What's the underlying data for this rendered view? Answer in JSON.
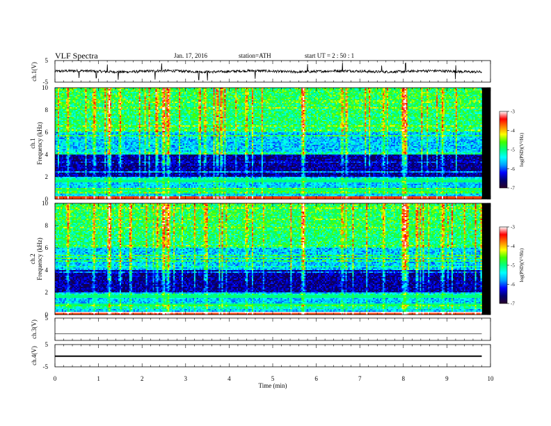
{
  "header": {
    "title": "VLF  Spectra",
    "date": "Jan. 17, 2016",
    "station": "station=ATH",
    "start": "start  UT  =   2  : 50 : 1"
  },
  "chart_data": [
    {
      "type": "line",
      "id": "ch1-waveform",
      "ylabel": "ch.1(V)",
      "yticks": [
        "5",
        "-5"
      ],
      "ylim": [
        -5,
        5
      ],
      "x_unit": "min",
      "xlim": [
        0,
        10
      ],
      "data_extent_min": 9.8,
      "baseline_v": 0.0,
      "noise_amplitude_v": 1.2,
      "spike_times_min": [
        0.55,
        0.95,
        1.2,
        1.45,
        2.3,
        2.45,
        3.3,
        3.5,
        4.6,
        5.8,
        6.6,
        7.5,
        8.05,
        9.2
      ]
    },
    {
      "type": "heatmap",
      "id": "ch1-spectrogram",
      "ylabel": "ch.1\nFrequency  (kHz)",
      "yticks": [
        "0",
        "2",
        "4",
        "6",
        "8",
        "10"
      ],
      "ylim": [
        0,
        10
      ],
      "xlim": [
        0,
        10
      ],
      "data_extent_min": 9.8,
      "colorbar": {
        "label": "log(PSD)(V²/Hz)",
        "ticks": [
          "-3",
          "-4",
          "-5",
          "-6",
          "-7"
        ],
        "range": [
          -7,
          -3
        ]
      },
      "broadband_bursts_min": [
        0.3,
        0.9,
        1.25,
        1.5,
        2.35,
        2.5,
        2.6,
        3.45,
        4.4,
        5.7,
        6.6,
        7.55,
        8.0,
        8.05,
        8.9
      ],
      "strong_bursts_min": [
        1.25,
        2.5,
        2.6,
        5.7,
        8.0,
        8.05
      ]
    },
    {
      "type": "heatmap",
      "id": "ch2-spectrogram",
      "ylabel": "ch.2\nFrequency  (kHz)",
      "yticks": [
        "0",
        "2",
        "4",
        "6",
        "8",
        "10"
      ],
      "ylim": [
        0,
        10
      ],
      "xlim": [
        0,
        10
      ],
      "data_extent_min": 9.8,
      "colorbar": {
        "label": "log(PSD)(V²/Hz)",
        "ticks": [
          "-3",
          "-4",
          "-5",
          "-6",
          "-7"
        ],
        "range": [
          -7,
          -3
        ]
      },
      "broadband_bursts_min": [
        0.3,
        0.9,
        1.25,
        1.5,
        2.35,
        2.5,
        2.6,
        3.45,
        4.4,
        5.7,
        6.6,
        7.55,
        8.0,
        8.05,
        8.9
      ],
      "strong_bursts_min": [
        1.25,
        2.5,
        2.6,
        5.7,
        8.0,
        8.05
      ]
    },
    {
      "type": "line",
      "id": "ch3-waveform",
      "ylabel": "ch.3(V)",
      "yticks": [
        "5"
      ],
      "ylim": [
        -5,
        5
      ],
      "xlim": [
        0,
        10
      ],
      "data_extent_min": 9.8,
      "baseline_v": -2.0,
      "noise_amplitude_v": 0.0
    },
    {
      "type": "line",
      "id": "ch4-waveform",
      "ylabel": "ch.4(V)",
      "yticks": [
        "5",
        "-5"
      ],
      "ylim": [
        -5,
        5
      ],
      "xlim": [
        0,
        10
      ],
      "data_extent_min": 9.8,
      "baseline_v": -0.2,
      "noise_amplitude_v": 0.3
    }
  ],
  "x_axis": {
    "label": "Time  (min)",
    "ticks": [
      "0",
      "1",
      "2",
      "3",
      "4",
      "5",
      "6",
      "7",
      "8",
      "9",
      "10"
    ],
    "range": [
      0,
      10
    ]
  },
  "colors": {
    "colormap": [
      "#2a002a",
      "#000070",
      "#0000ff",
      "#00a0ff",
      "#00ffff",
      "#00ff80",
      "#40ff00",
      "#ffff00",
      "#ff8000",
      "#ff0000",
      "#ffffff"
    ]
  }
}
